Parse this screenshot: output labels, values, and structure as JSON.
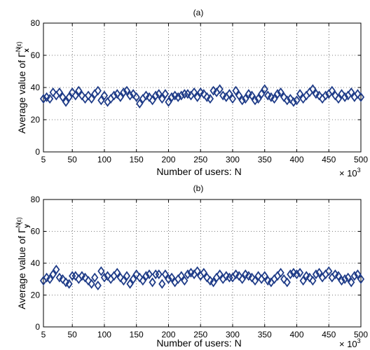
{
  "chart_data": [
    {
      "type": "scatter",
      "title": "(a)",
      "xlabel": "Number of users: N",
      "ylabel_prefix": "Average value of",
      "ylabel_symbol": "Γ",
      "ylabel_sup": "N",
      "ylabel_sub": "x",
      "ylabel_arg": "(ε)",
      "xlim": [
        5,
        500
      ],
      "ylim": [
        0,
        80
      ],
      "xticks": [
        "5",
        "50",
        "100",
        "150",
        "200",
        "250",
        "300",
        "350",
        "400",
        "450",
        "500"
      ],
      "yticks": [
        "0",
        "20",
        "40",
        "60",
        "80"
      ],
      "xscale_label": "× 10",
      "xscale_exp": "3",
      "grid": true,
      "marker": "diamond",
      "color": "#1f3c88",
      "x": [
        5,
        10,
        15,
        20,
        25,
        30,
        35,
        40,
        45,
        50,
        55,
        60,
        65,
        70,
        75,
        80,
        85,
        90,
        95,
        100,
        105,
        110,
        115,
        120,
        125,
        130,
        135,
        140,
        145,
        150,
        155,
        160,
        165,
        170,
        175,
        180,
        185,
        190,
        195,
        200,
        205,
        210,
        215,
        220,
        225,
        230,
        235,
        240,
        245,
        250,
        255,
        260,
        265,
        270,
        275,
        280,
        285,
        290,
        295,
        300,
        305,
        310,
        315,
        320,
        325,
        330,
        335,
        340,
        345,
        350,
        355,
        360,
        365,
        370,
        375,
        380,
        385,
        390,
        395,
        400,
        405,
        410,
        415,
        420,
        425,
        430,
        435,
        440,
        445,
        450,
        455,
        460,
        465,
        470,
        475,
        480,
        485,
        490,
        495,
        500
      ],
      "y": [
        33,
        34,
        33,
        37,
        35,
        37,
        34,
        31,
        34,
        37,
        35,
        38,
        35,
        33,
        35,
        33,
        36,
        38,
        32,
        35,
        31,
        33,
        35,
        36,
        34,
        37,
        38,
        35,
        36,
        34,
        30,
        33,
        35,
        34,
        32,
        35,
        36,
        33,
        36,
        31,
        34,
        35,
        34,
        35,
        36,
        36,
        35,
        37,
        34,
        37,
        36,
        34,
        33,
        38,
        37,
        39,
        35,
        34,
        36,
        33,
        38,
        35,
        32,
        33,
        36,
        35,
        32,
        33,
        36,
        39,
        35,
        34,
        33,
        36,
        37,
        34,
        32,
        33,
        31,
        32,
        36,
        33,
        35,
        37,
        39,
        36,
        35,
        33,
        35,
        36,
        38,
        35,
        33,
        36,
        34,
        35,
        37,
        34,
        36,
        34
      ]
    },
    {
      "type": "scatter",
      "title": "(b)",
      "xlabel": "Number of users: N",
      "ylabel_prefix": "Average value of",
      "ylabel_symbol": "Γ",
      "ylabel_sup": "N",
      "ylabel_sub": "y",
      "ylabel_arg": "(ε)",
      "xlim": [
        5,
        500
      ],
      "ylim": [
        0,
        80
      ],
      "xticks": [
        "5",
        "50",
        "100",
        "150",
        "200",
        "250",
        "300",
        "350",
        "400",
        "450",
        "500"
      ],
      "yticks": [
        "0",
        "20",
        "40",
        "60",
        "80"
      ],
      "xscale_label": "× 10",
      "xscale_exp": "3",
      "grid": true,
      "marker": "diamond",
      "color": "#1f3c88",
      "x": [
        5,
        10,
        15,
        20,
        25,
        30,
        35,
        40,
        45,
        50,
        55,
        60,
        65,
        70,
        75,
        80,
        85,
        90,
        95,
        100,
        105,
        110,
        115,
        120,
        125,
        130,
        135,
        140,
        145,
        150,
        155,
        160,
        165,
        170,
        175,
        180,
        185,
        190,
        195,
        200,
        205,
        210,
        215,
        220,
        225,
        230,
        235,
        240,
        245,
        250,
        255,
        260,
        265,
        270,
        275,
        280,
        285,
        290,
        295,
        300,
        305,
        310,
        315,
        320,
        325,
        330,
        335,
        340,
        345,
        350,
        355,
        360,
        365,
        370,
        375,
        380,
        385,
        390,
        395,
        400,
        405,
        410,
        415,
        420,
        425,
        430,
        435,
        440,
        445,
        450,
        455,
        460,
        465,
        470,
        475,
        480,
        485,
        490,
        495,
        500
      ],
      "y": [
        29,
        31,
        30,
        33,
        36,
        31,
        30,
        28,
        27,
        32,
        32,
        30,
        32,
        31,
        29,
        27,
        31,
        26,
        35,
        31,
        32,
        30,
        32,
        34,
        31,
        29,
        32,
        27,
        30,
        33,
        31,
        29,
        32,
        33,
        28,
        33,
        33,
        27,
        33,
        30,
        31,
        28,
        30,
        32,
        29,
        33,
        34,
        33,
        35,
        32,
        34,
        31,
        29,
        28,
        31,
        33,
        30,
        32,
        31,
        31,
        33,
        32,
        30,
        33,
        32,
        31,
        29,
        32,
        30,
        32,
        29,
        28,
        30,
        32,
        34,
        30,
        28,
        33,
        34,
        33,
        34,
        29,
        32,
        31,
        29,
        33,
        34,
        31,
        33,
        35,
        31,
        33,
        32,
        29,
        30,
        31,
        28,
        32,
        33,
        30
      ]
    }
  ]
}
